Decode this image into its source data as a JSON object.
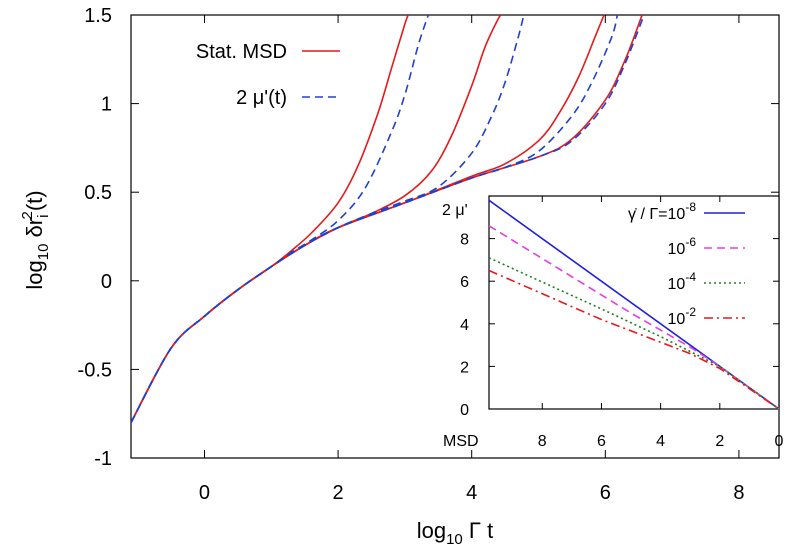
{
  "chart_data": [
    {
      "type": "line",
      "xlabel": "log10 Γ t",
      "ylabel": "log10 δri2(t)",
      "xlim": [
        -1.1,
        8.6
      ],
      "ylim": [
        -1,
        1.5
      ],
      "xticks": [
        "0",
        "2",
        "4",
        "6",
        "8"
      ],
      "yticks": [
        "-1",
        "-0.5",
        "0",
        "0.5",
        "1",
        "1.5"
      ],
      "legend": {
        "position": "top-left",
        "entries": [
          {
            "label": "Stat. MSD",
            "color": "#e41a1c",
            "style": "solid"
          },
          {
            "label": "2 μ'(t)",
            "color": "#2040d0",
            "style": "dashed"
          }
        ]
      },
      "series": [
        {
          "name": "Stat. MSD",
          "group": "shear 1e-2",
          "color": "#e41a1c",
          "style": "solid",
          "x": [
            -1.1,
            -0.5,
            0,
            0.5,
            1,
            1.3,
            1.6,
            2,
            2.3,
            2.6,
            2.8,
            3.0,
            3.05
          ],
          "y": [
            -0.8,
            -0.38,
            -0.2,
            -0.05,
            0.08,
            0.17,
            0.27,
            0.44,
            0.65,
            0.95,
            1.2,
            1.45,
            1.5
          ]
        },
        {
          "name": "2 μ'(t)",
          "group": "shear 1e-2",
          "color": "#2040d0",
          "style": "dashed",
          "x": [
            -1.1,
            -0.5,
            0,
            0.5,
            1,
            1.3,
            1.6,
            2,
            2.4,
            2.8,
            3.0,
            3.2,
            3.35
          ],
          "y": [
            -0.8,
            -0.38,
            -0.2,
            -0.05,
            0.08,
            0.16,
            0.23,
            0.34,
            0.52,
            0.84,
            1.05,
            1.33,
            1.5
          ]
        },
        {
          "name": "Stat. MSD",
          "group": "shear 1e-4",
          "color": "#e41a1c",
          "style": "solid",
          "x": [
            -1.1,
            -0.5,
            0,
            0.5,
            1,
            1.5,
            2,
            2.5,
            3,
            3.4,
            3.7,
            4.0,
            4.2,
            4.4,
            4.45
          ],
          "y": [
            -0.8,
            -0.38,
            -0.2,
            -0.05,
            0.08,
            0.2,
            0.3,
            0.38,
            0.48,
            0.62,
            0.82,
            1.1,
            1.32,
            1.48,
            1.5
          ]
        },
        {
          "name": "2 μ'(t)",
          "group": "shear 1e-4",
          "color": "#2040d0",
          "style": "dashed",
          "x": [
            -1.1,
            -0.5,
            0,
            0.5,
            1,
            1.5,
            2,
            2.5,
            3,
            3.5,
            4,
            4.3,
            4.5,
            4.7,
            4.78
          ],
          "y": [
            -0.8,
            -0.38,
            -0.2,
            -0.05,
            0.08,
            0.2,
            0.3,
            0.38,
            0.45,
            0.53,
            0.72,
            0.93,
            1.12,
            1.38,
            1.5
          ]
        },
        {
          "name": "Stat. MSD",
          "group": "shear 1e-6",
          "color": "#e41a1c",
          "style": "solid",
          "x": [
            -1.1,
            -0.5,
            0,
            0.5,
            1,
            1.5,
            2,
            3,
            4,
            4.5,
            5,
            5.3,
            5.6,
            5.85,
            5.98
          ],
          "y": [
            -0.8,
            -0.38,
            -0.2,
            -0.05,
            0.08,
            0.2,
            0.3,
            0.44,
            0.59,
            0.66,
            0.79,
            0.94,
            1.15,
            1.38,
            1.5
          ]
        },
        {
          "name": "2 μ'(t)",
          "group": "shear 1e-6",
          "color": "#2040d0",
          "style": "dashed",
          "x": [
            -1.1,
            -0.5,
            0,
            0.5,
            1,
            1.5,
            2,
            3,
            4,
            4.5,
            5,
            5.5,
            5.8,
            6.1,
            6.18
          ],
          "y": [
            -0.8,
            -0.38,
            -0.2,
            -0.05,
            0.08,
            0.2,
            0.3,
            0.44,
            0.58,
            0.64,
            0.73,
            0.93,
            1.12,
            1.38,
            1.5
          ]
        },
        {
          "name": "Stat. MSD",
          "group": "shear 1e-8",
          "color": "#e41a1c",
          "style": "solid",
          "x": [
            -1.1,
            -0.5,
            0,
            0.5,
            1,
            1.5,
            2,
            3,
            4,
            5,
            5.5,
            6,
            6.3,
            6.55
          ],
          "y": [
            -0.8,
            -0.38,
            -0.2,
            -0.05,
            0.08,
            0.2,
            0.3,
            0.44,
            0.58,
            0.7,
            0.8,
            1.02,
            1.25,
            1.5
          ]
        },
        {
          "name": "2 μ'(t)",
          "group": "shear 1e-8",
          "color": "#2040d0",
          "style": "dashed",
          "x": [
            -1.1,
            -0.5,
            0,
            0.5,
            1,
            1.5,
            2,
            3,
            4,
            5,
            5.5,
            6,
            6.3,
            6.58
          ],
          "y": [
            -0.8,
            -0.38,
            -0.2,
            -0.05,
            0.08,
            0.2,
            0.3,
            0.44,
            0.58,
            0.7,
            0.79,
            1.0,
            1.23,
            1.5
          ]
        }
      ]
    },
    {
      "type": "line",
      "inset": true,
      "ylabel": "2 μ'",
      "xlabel": "MSD",
      "xlim": [
        9.8,
        0
      ],
      "ylim": [
        0,
        10
      ],
      "xticks": [
        "8",
        "6",
        "4",
        "2",
        "0"
      ],
      "yticks": [
        "0",
        "2",
        "4",
        "6",
        "8"
      ],
      "legend": {
        "position": "top-right",
        "entries": [
          {
            "label_prefix": "γ̇ / Γ=10",
            "exp": "-8",
            "color": "#2020e0",
            "style": "solid"
          },
          {
            "label_prefix": "10",
            "exp": "-6",
            "color": "#e040e0",
            "style": "dashed"
          },
          {
            "label_prefix": "10",
            "exp": "-4",
            "color": "#208020",
            "style": "dotted"
          },
          {
            "label_prefix": "10",
            "exp": "-2",
            "color": "#e41a1c",
            "style": "dashdot"
          }
        ]
      },
      "series": [
        {
          "name": "10^-8",
          "color": "#2020e0",
          "style": "solid",
          "x": [
            9.8,
            0
          ],
          "y": [
            9.8,
            0
          ]
        },
        {
          "name": "10^-6",
          "color": "#e040e0",
          "style": "dashed",
          "x": [
            9.8,
            5,
            3,
            2,
            0
          ],
          "y": [
            8.6,
            4.5,
            2.9,
            2.0,
            0
          ]
        },
        {
          "name": "10^-4",
          "color": "#208020",
          "style": "dotted",
          "x": [
            9.8,
            6,
            4,
            2,
            0
          ],
          "y": [
            7.1,
            4.7,
            3.4,
            2.0,
            0
          ]
        },
        {
          "name": "10^-2",
          "color": "#e41a1c",
          "style": "dashdot",
          "x": [
            9.8,
            6,
            3,
            2,
            0
          ],
          "y": [
            6.5,
            4.2,
            2.6,
            1.9,
            0
          ]
        }
      ]
    }
  ]
}
